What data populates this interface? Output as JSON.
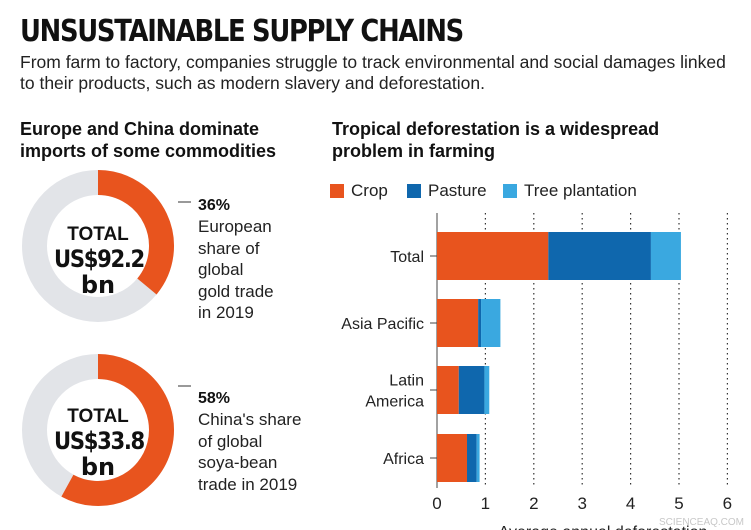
{
  "title": "UNSUSTAINABLE SUPPLY CHAINS",
  "subtitle": "From farm to factory, companies struggle to track environmental and social damages linked to their products, such as modern slavery and deforestation.",
  "left_panel": {
    "heading": "Europe and China dominate imports of some commodities",
    "donuts": [
      {
        "total_label": "TOTAL",
        "total_value": "US$92.2",
        "total_unit": "bn",
        "share_percent": 36,
        "share_label": "36%",
        "note_lines": [
          "European",
          "share of",
          "global",
          "gold trade",
          "in 2019"
        ],
        "fill_color": "#e8541e",
        "track_color": "#e2e4e8"
      },
      {
        "total_label": "TOTAL",
        "total_value": "US$33.8",
        "total_unit": "bn",
        "share_percent": 58,
        "share_label": "58%",
        "note_lines": [
          "China's share",
          "of global",
          "soya-bean",
          "trade in 2019"
        ],
        "fill_color": "#e8541e",
        "track_color": "#e2e4e8"
      }
    ]
  },
  "right_panel": {
    "heading": "Tropical deforestation is a widespread problem in farming"
  },
  "chart_data": {
    "type": "bar",
    "orientation": "horizontal",
    "stacked": true,
    "title": "Tropical deforestation is a widespread problem in farming",
    "categories": [
      "Total",
      "Asia Pacific",
      "Latin America",
      "Africa"
    ],
    "category_lines": [
      [
        "Total"
      ],
      [
        "Asia Pacific"
      ],
      [
        "Latin",
        "America"
      ],
      [
        "Africa"
      ]
    ],
    "series": [
      {
        "name": "Crop",
        "color": "#e8541e",
        "values": [
          2.3,
          0.85,
          0.45,
          0.62
        ]
      },
      {
        "name": "Pasture",
        "color": "#0f67ad",
        "values": [
          2.12,
          0.06,
          0.53,
          0.2
        ]
      },
      {
        "name": "Tree plantation",
        "color": "#3aa8e0",
        "values": [
          0.62,
          0.4,
          0.1,
          0.06
        ]
      }
    ],
    "xlim": [
      0,
      6
    ],
    "xticks": [
      "0",
      "1",
      "2",
      "3",
      "4",
      "5",
      "6"
    ],
    "xlabel": "Average annual deforestation",
    "grid": "vertical-dotted",
    "legend_position": "top"
  },
  "watermark": "SCIENCEAQ.COM"
}
